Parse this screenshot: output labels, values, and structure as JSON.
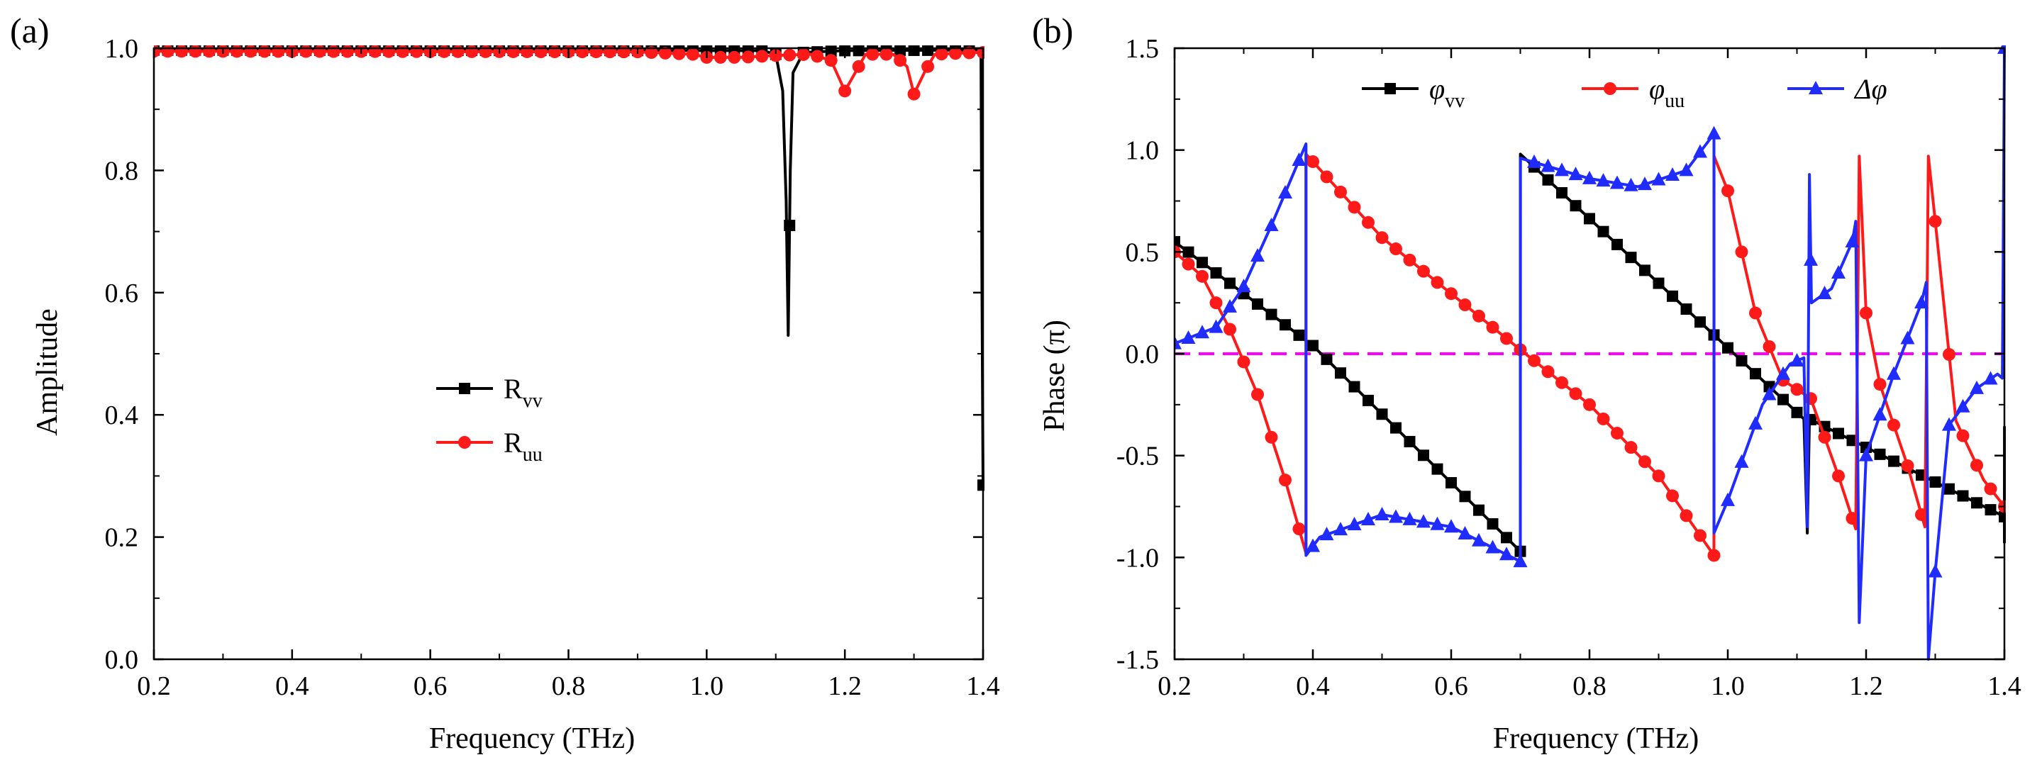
{
  "colors": {
    "black": "#000000",
    "red": "#ff1a1a",
    "blue": "#1f2bff",
    "magenta": "#ff00ff",
    "axis": "#000000"
  },
  "chart_data": [
    {
      "type": "line",
      "panel_label": "(a)",
      "title": "",
      "xlabel": "Frequency (THz)",
      "ylabel": "Amplitude",
      "xlim": [
        0.2,
        1.4
      ],
      "ylim": [
        0.0,
        1.0
      ],
      "xticks": [
        "0.2",
        "0.4",
        "0.6",
        "0.8",
        "1.0",
        "1.2",
        "1.4"
      ],
      "yticks": [
        "0.0",
        "0.2",
        "0.4",
        "0.6",
        "0.8",
        "1.0"
      ],
      "legend": {
        "placement": "center-left",
        "entries": [
          {
            "main": "R",
            "sub": "vv",
            "color": "#000000",
            "marker": "square"
          },
          {
            "main": "R",
            "sub": "uu",
            "color": "#ff1a1a",
            "marker": "circle"
          }
        ]
      },
      "series": [
        {
          "name": "Rvv",
          "color": "#000000",
          "marker": "square",
          "marker_step": 0.02,
          "points": [
            [
              0.2,
              0.997
            ],
            [
              1.08,
              0.996
            ],
            [
              1.1,
              0.99
            ],
            [
              1.11,
              0.93
            ],
            [
              1.115,
              0.75
            ],
            [
              1.118,
              0.53
            ],
            [
              1.121,
              0.8
            ],
            [
              1.125,
              0.96
            ],
            [
              1.14,
              0.993
            ],
            [
              1.2,
              0.996
            ],
            [
              1.39,
              0.997
            ],
            [
              1.397,
              0.995
            ],
            [
              1.3985,
              0.6
            ],
            [
              1.4,
              0.285
            ]
          ]
        },
        {
          "name": "Ruu",
          "color": "#ff1a1a",
          "marker": "circle",
          "marker_step": 0.02,
          "points": [
            [
              0.2,
              0.995
            ],
            [
              0.9,
              0.994
            ],
            [
              0.98,
              0.99
            ],
            [
              1.0,
              0.985
            ],
            [
              1.05,
              0.985
            ],
            [
              1.1,
              0.988
            ],
            [
              1.15,
              0.99
            ],
            [
              1.18,
              0.98
            ],
            [
              1.2,
              0.93
            ],
            [
              1.215,
              0.96
            ],
            [
              1.23,
              0.99
            ],
            [
              1.27,
              0.99
            ],
            [
              1.29,
              0.97
            ],
            [
              1.3,
              0.925
            ],
            [
              1.315,
              0.96
            ],
            [
              1.33,
              0.99
            ],
            [
              1.39,
              0.993
            ],
            [
              1.4,
              0.993
            ]
          ]
        }
      ]
    },
    {
      "type": "line",
      "panel_label": "(b)",
      "title": "",
      "xlabel": "Frequency (THz)",
      "ylabel": "Phase (π)",
      "xlim": [
        0.2,
        1.4
      ],
      "ylim": [
        -1.5,
        1.5
      ],
      "xticks": [
        "0.2",
        "0.4",
        "0.6",
        "0.8",
        "1.0",
        "1.2",
        "1.4"
      ],
      "yticks": [
        "-1.5",
        "-1.0",
        "-0.5",
        "0.0",
        "0.5",
        "1.0",
        "1.5"
      ],
      "reference_line": {
        "y": 0.0,
        "color": "#ff00ff",
        "style": "dashed"
      },
      "legend": {
        "placement": "top-center",
        "entries": [
          {
            "main": "φ",
            "sub": "vv",
            "color": "#000000",
            "marker": "square",
            "italic": true
          },
          {
            "main": "φ",
            "sub": "uu",
            "color": "#ff1a1a",
            "marker": "circle",
            "italic": true
          },
          {
            "main": "Δφ",
            "sub": "",
            "color": "#1f2bff",
            "marker": "triangle",
            "italic": true
          }
        ]
      },
      "series": [
        {
          "name": "φvv",
          "color": "#000000",
          "marker": "square",
          "marker_step": 0.02,
          "points": [
            [
              0.2,
              0.55
            ],
            [
              0.4,
              0.04
            ],
            [
              0.7,
              -0.97
            ],
            [
              0.7001,
              0.98
            ],
            [
              1.11,
              -0.32
            ],
            [
              1.115,
              -0.88
            ],
            [
              1.118,
              -0.32
            ],
            [
              1.4,
              -0.8
            ],
            [
              1.4001,
              -0.36
            ],
            [
              1.4,
              -0.93
            ]
          ]
        },
        {
          "name": "φuu",
          "color": "#ff1a1a",
          "marker": "circle",
          "marker_step": 0.02,
          "points": [
            [
              0.2,
              0.5
            ],
            [
              0.24,
              0.38
            ],
            [
              0.28,
              0.12
            ],
            [
              0.32,
              -0.2
            ],
            [
              0.36,
              -0.62
            ],
            [
              0.39,
              -0.98
            ],
            [
              0.3901,
              0.98
            ],
            [
              0.5,
              0.57
            ],
            [
              0.7,
              0.02
            ],
            [
              0.8,
              -0.25
            ],
            [
              0.9,
              -0.6
            ],
            [
              0.98,
              -0.99
            ],
            [
              0.9801,
              0.97
            ],
            [
              1.0,
              0.8
            ],
            [
              1.04,
              0.2
            ],
            [
              1.08,
              -0.13
            ],
            [
              1.12,
              -0.22
            ],
            [
              1.16,
              -0.6
            ],
            [
              1.185,
              -0.86
            ],
            [
              1.19,
              0.97
            ],
            [
              1.2,
              0.2
            ],
            [
              1.22,
              -0.15
            ],
            [
              1.26,
              -0.55
            ],
            [
              1.285,
              -0.85
            ],
            [
              1.29,
              0.97
            ],
            [
              1.3,
              0.65
            ],
            [
              1.33,
              -0.33
            ],
            [
              1.37,
              -0.62
            ],
            [
              1.4,
              -0.75
            ]
          ]
        },
        {
          "name": "Δφ",
          "color": "#1f2bff",
          "marker": "triangle",
          "marker_step": 0.02,
          "points": [
            [
              0.2,
              0.05
            ],
            [
              0.26,
              0.13
            ],
            [
              0.3,
              0.33
            ],
            [
              0.34,
              0.63
            ],
            [
              0.37,
              0.87
            ],
            [
              0.39,
              1.03
            ],
            [
              0.3901,
              -0.99
            ],
            [
              0.41,
              -0.9
            ],
            [
              0.5,
              -0.79
            ],
            [
              0.6,
              -0.85
            ],
            [
              0.7,
              -1.02
            ],
            [
              0.7001,
              0.96
            ],
            [
              0.8,
              0.86
            ],
            [
              0.87,
              0.82
            ],
            [
              0.94,
              0.9
            ],
            [
              0.98,
              1.08
            ],
            [
              0.9801,
              -0.88
            ],
            [
              1.0,
              -0.72
            ],
            [
              1.05,
              -0.25
            ],
            [
              1.09,
              -0.05
            ],
            [
              1.11,
              -0.02
            ],
            [
              1.115,
              -0.85
            ],
            [
              1.118,
              0.88
            ],
            [
              1.121,
              0.25
            ],
            [
              1.15,
              0.32
            ],
            [
              1.18,
              0.55
            ],
            [
              1.185,
              0.65
            ],
            [
              1.19,
              -1.32
            ],
            [
              1.2,
              -0.5
            ],
            [
              1.24,
              -0.1
            ],
            [
              1.28,
              0.25
            ],
            [
              1.287,
              0.35
            ],
            [
              1.29,
              -1.5
            ],
            [
              1.3,
              -1.07
            ],
            [
              1.32,
              -0.35
            ],
            [
              1.36,
              -0.17
            ],
            [
              1.39,
              -0.1
            ],
            [
              1.397,
              -0.12
            ],
            [
              1.398,
              0.38
            ],
            [
              1.4,
              1.5
            ]
          ]
        }
      ]
    }
  ]
}
